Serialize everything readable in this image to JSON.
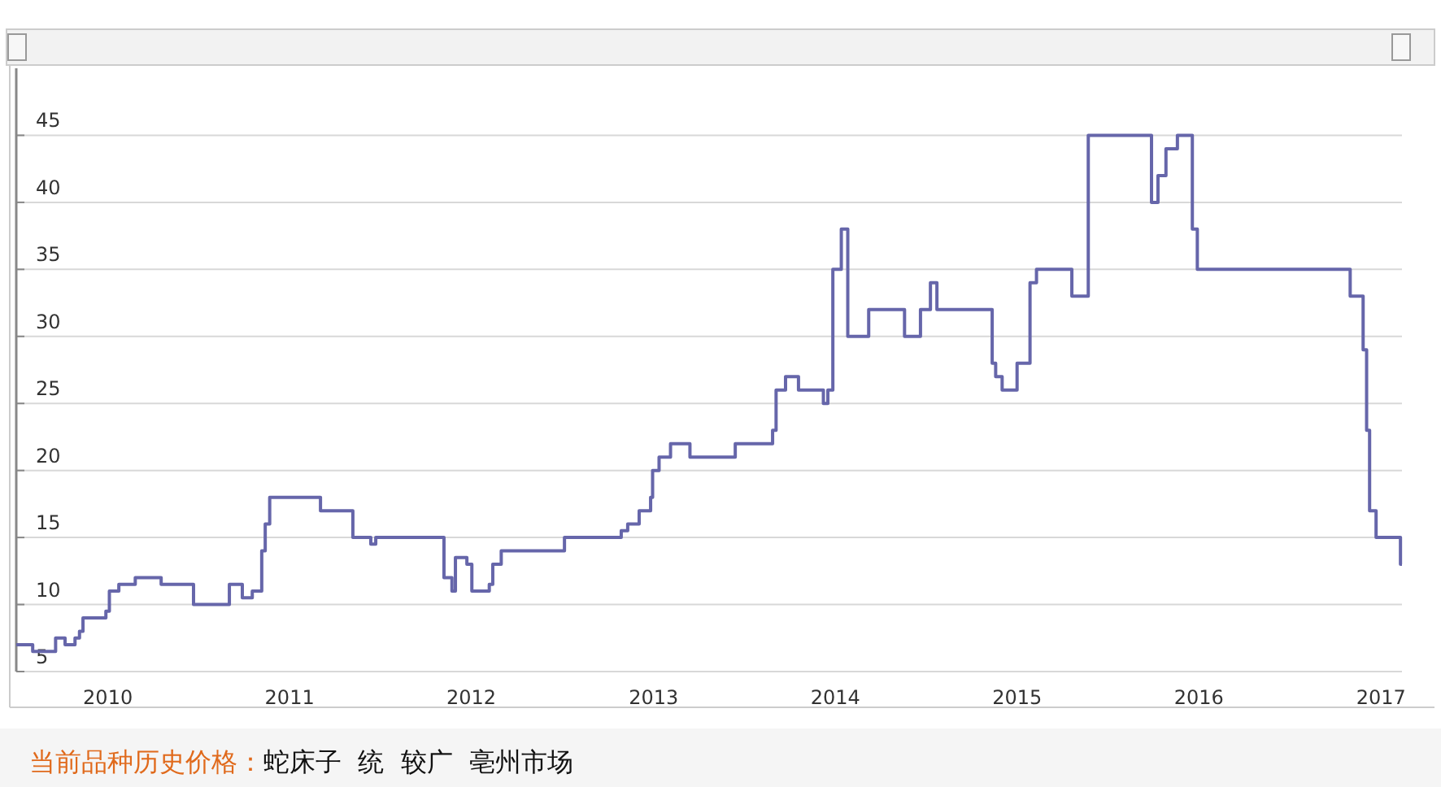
{
  "chart_data": {
    "type": "step",
    "x": [
      "2009-07-01",
      "2009-08-03",
      "2009-09-18",
      "2009-10-07",
      "2009-10-27",
      "2009-11-05",
      "2009-11-12",
      "2009-12-28",
      "2010-01-04",
      "2010-01-23",
      "2010-02-25",
      "2010-04-18",
      "2010-06-22",
      "2010-09-02",
      "2010-09-28",
      "2010-10-18",
      "2010-11-06",
      "2010-11-13",
      "2010-11-22",
      "2011-03-04",
      "2011-05-08",
      "2011-06-13",
      "2011-06-23",
      "2011-11-07",
      "2011-11-23",
      "2011-11-30",
      "2011-12-23",
      "2012-01-02",
      "2012-02-06",
      "2012-02-13",
      "2012-03-01",
      "2012-07-06",
      "2012-10-28",
      "2012-11-10",
      "2012-12-03",
      "2012-12-26",
      "2012-12-30",
      "2013-01-12",
      "2013-02-04",
      "2013-03-15",
      "2013-06-14",
      "2013-08-28",
      "2013-09-04",
      "2013-09-23",
      "2013-10-19",
      "2013-12-08",
      "2013-12-17",
      "2013-12-27",
      "2014-01-13",
      "2014-01-26",
      "2014-03-09",
      "2014-05-20",
      "2014-06-21",
      "2014-07-11",
      "2014-07-24",
      "2014-11-12",
      "2014-11-19",
      "2014-12-02",
      "2015-01-01",
      "2015-01-27",
      "2015-02-09",
      "2015-04-21",
      "2015-05-24",
      "2015-09-28",
      "2015-10-11",
      "2015-10-27",
      "2015-11-19",
      "2015-12-19",
      "2015-12-29",
      "2016-10-31",
      "2016-11-26",
      "2016-12-03",
      "2016-12-09",
      "2016-12-22",
      "2017-02-09"
    ],
    "series": [
      {
        "color": "#6666aa",
        "values": [
          7,
          6.5,
          7.5,
          7,
          7.5,
          8,
          9,
          9.5,
          11,
          11.5,
          12,
          11.5,
          10,
          11.5,
          10.5,
          11,
          14,
          16,
          18,
          17,
          15,
          14.5,
          15,
          12,
          11,
          13.5,
          13,
          11,
          11.5,
          13,
          14,
          15,
          15.5,
          16,
          17,
          18,
          20,
          21,
          22,
          21,
          22,
          23,
          26,
          27,
          26,
          25,
          26,
          35,
          38,
          30,
          32,
          30,
          32,
          34,
          32,
          28,
          27,
          26,
          28,
          34,
          35,
          33,
          45,
          40,
          42,
          44,
          45,
          38,
          35,
          33,
          29,
          23,
          17,
          15,
          13
        ]
      }
    ],
    "xlim": [
      "2009-07-01",
      "2017-02-12"
    ],
    "xticks": [
      {
        "value": "2010-01-01",
        "label": "2010"
      },
      {
        "value": "2011-01-01",
        "label": "2011"
      },
      {
        "value": "2012-01-01",
        "label": "2012"
      },
      {
        "value": "2013-01-01",
        "label": "2013"
      },
      {
        "value": "2014-01-01",
        "label": "2014"
      },
      {
        "value": "2015-01-01",
        "label": "2015"
      },
      {
        "value": "2016-01-01",
        "label": "2016"
      },
      {
        "value": "2017-01-01",
        "label": "2017"
      }
    ],
    "ylim": [
      5,
      50
    ],
    "yticks": [
      5,
      10,
      15,
      20,
      25,
      30,
      35,
      40,
      45
    ],
    "grid": "y",
    "annotations": [
      "当前品种历史价格：",
      "蛇床子  统  较广  亳州市场"
    ]
  }
}
